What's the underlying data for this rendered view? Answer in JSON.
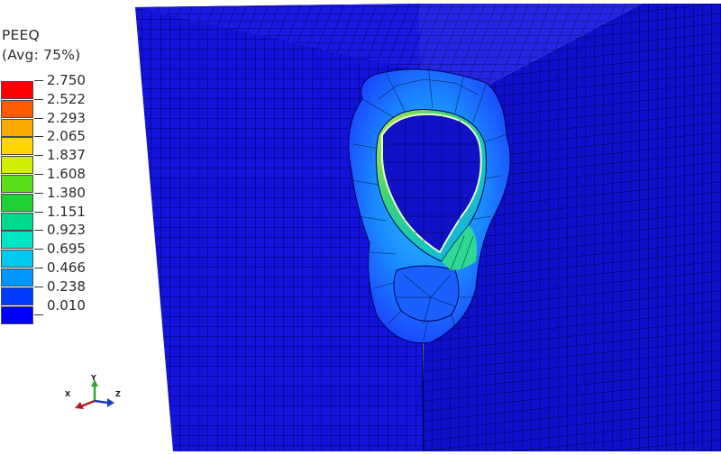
{
  "legend": {
    "variable": "PEEQ",
    "averaging": "(Avg: 75%)",
    "levels": [
      "2.750",
      "2.522",
      "2.293",
      "2.065",
      "1.837",
      "1.608",
      "1.380",
      "1.151",
      "0.923",
      "0.695",
      "0.466",
      "0.238",
      "0.010"
    ],
    "band_colors": [
      "#ff0000",
      "#ff5c00",
      "#ffaa00",
      "#ffd500",
      "#d2ee00",
      "#5ade18",
      "#1fd234",
      "#00d98a",
      "#00e6c4",
      "#00c8ef",
      "#0096ff",
      "#003cff",
      "#0000ff"
    ]
  },
  "triad": {
    "x": "X",
    "y": "Y",
    "z": "Z"
  },
  "colors": {
    "mesh_base": "#1010d6",
    "mesh_line": "#000058",
    "cavity_rim": "#d8f2a8"
  }
}
